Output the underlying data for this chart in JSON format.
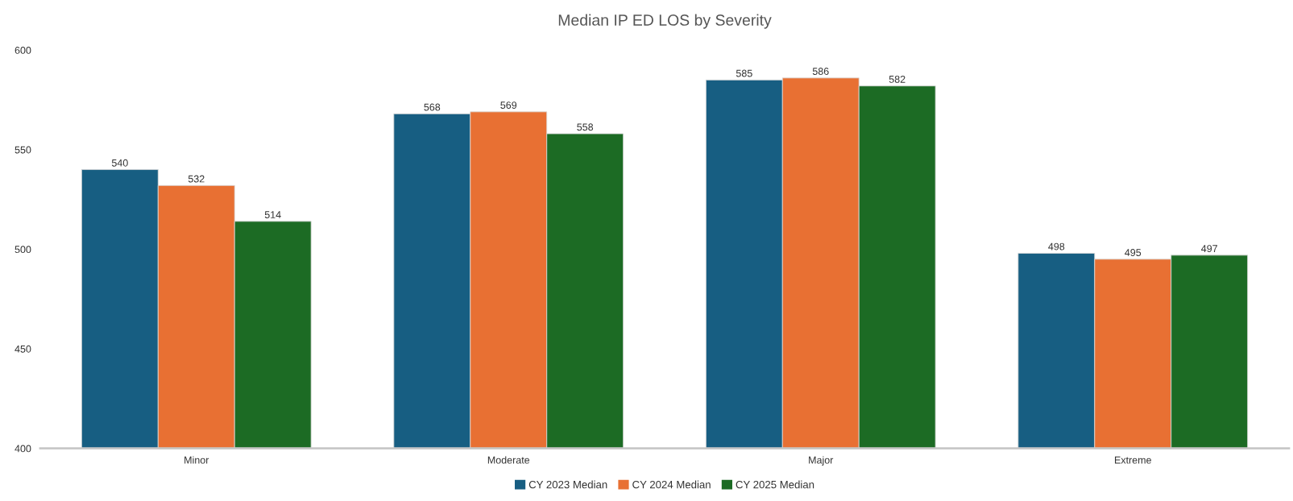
{
  "chart_data": {
    "type": "bar",
    "title": "Median IP ED LOS by Severity",
    "categories": [
      "Minor",
      "Moderate",
      "Major",
      "Extreme"
    ],
    "series": [
      {
        "name": "CY 2023 Median",
        "color": "#175e82",
        "values": [
          540,
          568,
          585,
          498
        ]
      },
      {
        "name": "CY 2024 Median",
        "color": "#e87033",
        "values": [
          532,
          569,
          586,
          495
        ]
      },
      {
        "name": "CY 2025 Median",
        "color": "#1c6b24",
        "values": [
          514,
          558,
          582,
          497
        ]
      }
    ],
    "ylim": [
      400,
      600
    ],
    "yticks": [
      400,
      450,
      500,
      550,
      600
    ],
    "data_labels": true,
    "grid": false,
    "legend": "bottom"
  }
}
